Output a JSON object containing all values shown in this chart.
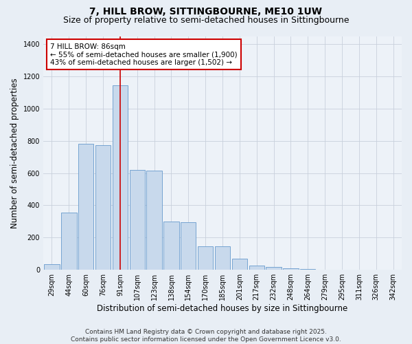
{
  "title_line1": "7, HILL BROW, SITTINGBOURNE, ME10 1UW",
  "title_line2": "Size of property relative to semi-detached houses in Sittingbourne",
  "xlabel": "Distribution of semi-detached houses by size in Sittingbourne",
  "ylabel": "Number of semi-detached properties",
  "categories": [
    "29sqm",
    "44sqm",
    "60sqm",
    "76sqm",
    "91sqm",
    "107sqm",
    "123sqm",
    "138sqm",
    "154sqm",
    "170sqm",
    "185sqm",
    "201sqm",
    "217sqm",
    "232sqm",
    "248sqm",
    "264sqm",
    "279sqm",
    "295sqm",
    "311sqm",
    "326sqm",
    "342sqm"
  ],
  "values": [
    35,
    355,
    780,
    775,
    1145,
    620,
    615,
    300,
    295,
    145,
    145,
    70,
    25,
    20,
    10,
    5,
    2,
    1,
    1,
    1,
    1
  ],
  "bar_color": "#c8d9ec",
  "bar_edge_color": "#6699cc",
  "vline_x": 4.0,
  "vline_color": "#cc0000",
  "annotation_title": "7 HILL BROW: 86sqm",
  "annotation_line1": "← 55% of semi-detached houses are smaller (1,900)",
  "annotation_line2": "43% of semi-detached houses are larger (1,502) →",
  "annotation_box_color": "#ffffff",
  "annotation_box_edge": "#cc0000",
  "ylim": [
    0,
    1450
  ],
  "yticks": [
    0,
    200,
    400,
    600,
    800,
    1000,
    1200,
    1400
  ],
  "footer_line1": "Contains HM Land Registry data © Crown copyright and database right 2025.",
  "footer_line2": "Contains public sector information licensed under the Open Government Licence v3.0.",
  "bg_color": "#e8eef5",
  "plot_bg_color": "#edf2f8",
  "grid_color": "#c8d0dc",
  "title_fontsize": 10,
  "subtitle_fontsize": 9,
  "axis_label_fontsize": 8.5,
  "tick_fontsize": 7,
  "annotation_fontsize": 7.5,
  "footer_fontsize": 6.5
}
